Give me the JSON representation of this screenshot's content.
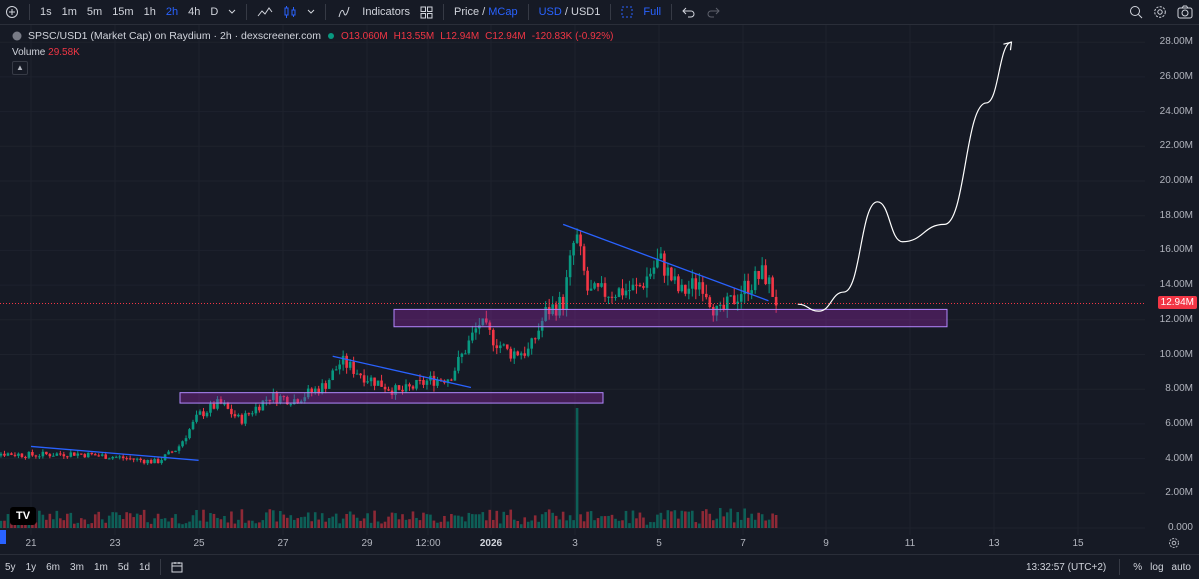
{
  "toolbar": {
    "timeframes": [
      "1s",
      "1m",
      "5m",
      "15m",
      "1h",
      "2h",
      "4h",
      "D"
    ],
    "active_timeframe": "2h",
    "indicators_label": "Indicators",
    "price_label": "Price",
    "slash": "/",
    "mcap_label": "MCap",
    "usd_label": "USD",
    "usd1_label": "USD1",
    "full_label": "Full"
  },
  "legend": {
    "title": "SPSC/USD1 (Market Cap) on Raydium · 2h · dexscreener.com",
    "open": "O13.060M",
    "high": "H13.55M",
    "low": "L12.94M",
    "close": "C12.94M",
    "change": "-120.83K (-0.92%)",
    "volume_label": "Volume",
    "volume_value": "29.58K"
  },
  "price_axis": {
    "ticks": [
      "28.00M",
      "26.00M",
      "24.00M",
      "22.00M",
      "20.00M",
      "18.00M",
      "16.00M",
      "14.00M",
      "12.00M",
      "10.00M",
      "8.00M",
      "6.00M",
      "4.00M",
      "2.00M",
      "0.000"
    ],
    "current_price": "12.94M",
    "current_value": 12.94
  },
  "time_axis": {
    "ticks": [
      "21",
      "23",
      "25",
      "27",
      "29",
      "12:00",
      "2026",
      "3",
      "5",
      "7",
      "9",
      "11",
      "13",
      "15"
    ]
  },
  "bottom_bar": {
    "ranges": [
      "5y",
      "1y",
      "6m",
      "3m",
      "1m",
      "5d",
      "1d"
    ],
    "clock": "13:32:57 (UTC+2)",
    "percent_label": "%",
    "log_label": "log",
    "auto_label": "auto"
  },
  "colors": {
    "up": "#089981",
    "down": "#f23645",
    "trendline": "#2962ff",
    "zone_fill": "#9c27b0",
    "zone_border": "#b388ff",
    "drawing": "#ffffff"
  },
  "chart_data": {
    "type": "candlestick",
    "pair": "SPSC/USD1",
    "timeframe": "2h",
    "ylim": [
      0,
      28
    ],
    "y_unit": "M",
    "annotations": {
      "support_zones": [
        {
          "low": 7.2,
          "high": 7.8
        },
        {
          "low": 11.6,
          "high": 12.6
        }
      ],
      "trendlines": [
        {
          "from": [
            21,
            4.7
          ],
          "to": [
            25,
            3.9
          ]
        },
        {
          "from": [
            28.2,
            9.9
          ],
          "to": [
            31.5,
            8.1
          ]
        },
        {
          "from": [
            33.7,
            17.5
          ],
          "to": [
            38.6,
            13.1
          ]
        }
      ],
      "projection_path": [
        [
          39.3,
          12.9
        ],
        [
          39.8,
          12.5
        ],
        [
          40.4,
          13.6
        ],
        [
          41.2,
          18.8
        ],
        [
          41.8,
          16.5
        ],
        [
          42.8,
          17.5
        ],
        [
          43.8,
          24.5
        ],
        [
          44.4,
          28.0
        ]
      ]
    }
  }
}
